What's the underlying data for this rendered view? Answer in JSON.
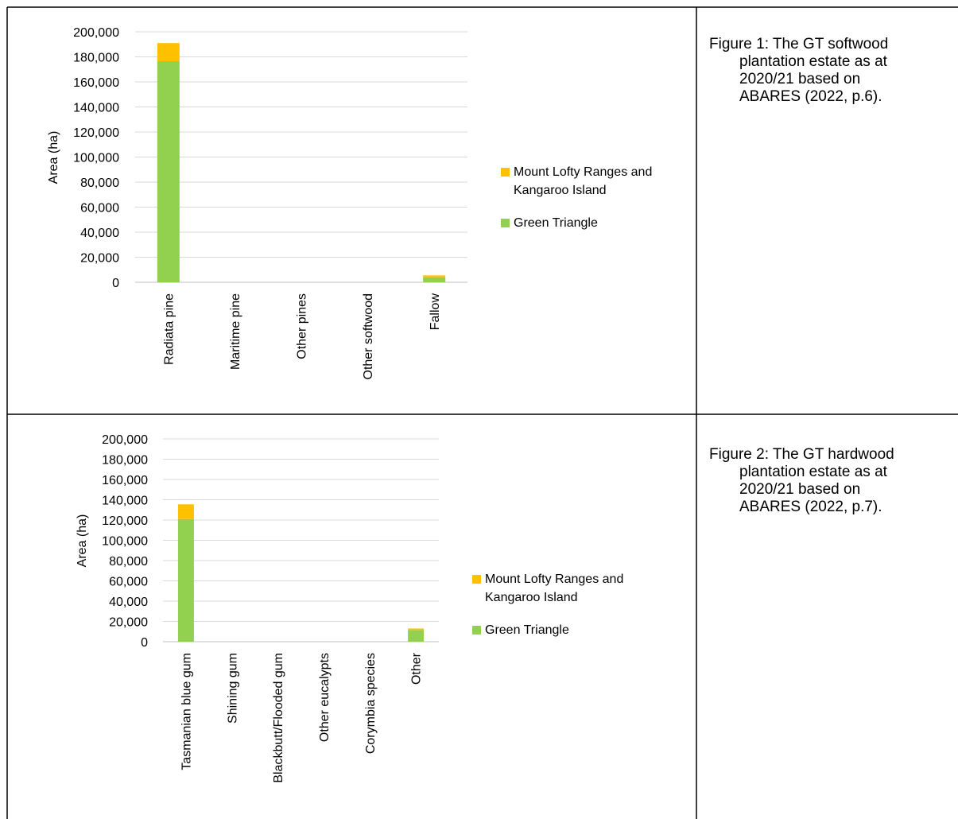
{
  "figure1": {
    "caption_lines": [
      "Figure 1: The GT softwood",
      "plantation estate as at",
      "2020/21 based on",
      "ABARES (2022, p.6)."
    ]
  },
  "figure2": {
    "caption_lines": [
      "Figure 2: The GT hardwood",
      "plantation estate as at",
      "2020/21 based on",
      "ABARES (2022, p.7)."
    ]
  },
  "colors": {
    "green": "#92d050",
    "gold": "#ffc000",
    "grid": "#d9d9d9",
    "border": "#000000"
  },
  "chart_data": [
    {
      "type": "bar",
      "stacked": true,
      "title": "",
      "xlabel": "",
      "ylabel": "Area (ha)",
      "ylim": [
        0,
        200000
      ],
      "yticks": [
        "0",
        "20,000",
        "40,000",
        "60,000",
        "80,000",
        "100,000",
        "120,000",
        "140,000",
        "160,000",
        "180,000",
        "200,000"
      ],
      "categories": [
        "Radiata pine",
        "Maritime pine",
        "Other pines",
        "Other softwood",
        "Fallow"
      ],
      "series": [
        {
          "name": "Green Triangle",
          "color": "#92d050",
          "values": [
            176500,
            0,
            0,
            0,
            4000
          ]
        },
        {
          "name": "Mount Lofty Ranges and Kangaroo Island",
          "color": "#ffc000",
          "values": [
            14500,
            0,
            0,
            0,
            1500
          ]
        }
      ],
      "legend": {
        "position": "right",
        "entries": [
          {
            "lines": [
              "Mount Lofty Ranges and",
              "Kangaroo Island"
            ],
            "color": "#ffc000"
          },
          {
            "lines": [
              "Green Triangle"
            ],
            "color": "#92d050"
          }
        ]
      },
      "grid": true
    },
    {
      "type": "bar",
      "stacked": true,
      "title": "",
      "xlabel": "",
      "ylabel": "Area (ha)",
      "ylim": [
        0,
        200000
      ],
      "yticks": [
        "0",
        "20,000",
        "40,000",
        "60,000",
        "80,000",
        "100,000",
        "120,000",
        "140,000",
        "160,000",
        "180,000",
        "200,000"
      ],
      "categories": [
        "Tasmanian blue gum",
        "Shining gum",
        "Blackbutt/Flooded gum",
        "Other eucalypts",
        "Corymbia species",
        "Other"
      ],
      "series": [
        {
          "name": "Green Triangle",
          "color": "#92d050",
          "values": [
            121000,
            0,
            0,
            0,
            0,
            11500
          ]
        },
        {
          "name": "Mount Lofty Ranges and Kangaroo Island",
          "color": "#ffc000",
          "values": [
            14500,
            0,
            0,
            0,
            0,
            1500
          ]
        }
      ],
      "legend": {
        "position": "right",
        "entries": [
          {
            "lines": [
              "Mount Lofty Ranges and",
              "Kangaroo Island"
            ],
            "color": "#ffc000"
          },
          {
            "lines": [
              "Green Triangle"
            ],
            "color": "#92d050"
          }
        ]
      },
      "grid": true
    }
  ]
}
